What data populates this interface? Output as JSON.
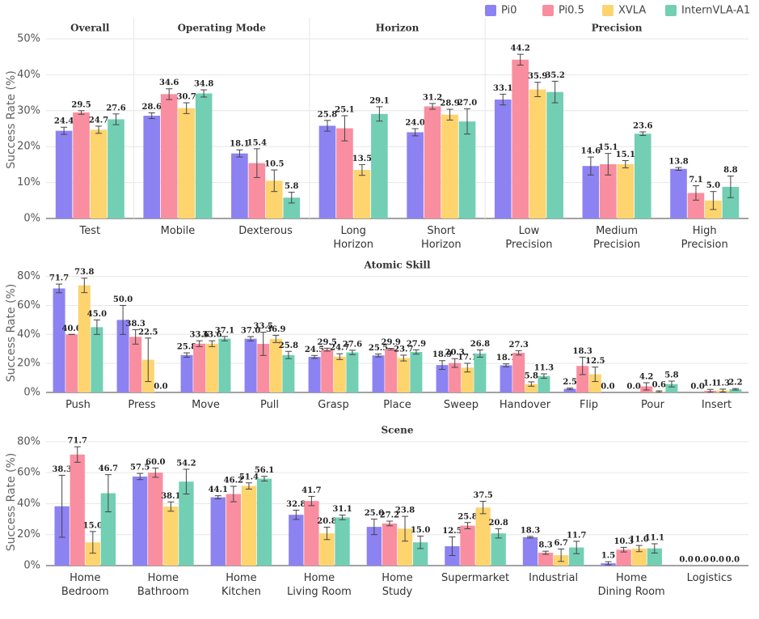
{
  "chart_data": [
    {
      "type": "bar",
      "ylabel": "Success Rate (%)",
      "legend": "top-right",
      "grid": true,
      "groups": [
        {
          "title": "Overall",
          "categories": [
            [
              "Test"
            ]
          ]
        },
        {
          "title": "Operating Mode",
          "categories": [
            [
              "Mobile"
            ],
            [
              "Dexterous"
            ]
          ]
        },
        {
          "title": "Horizon",
          "categories": [
            [
              "Long",
              "Horizon"
            ],
            [
              "Short",
              "Horizon"
            ]
          ]
        },
        {
          "title": "Precision",
          "categories": [
            [
              "Low",
              "Precision"
            ],
            [
              "Medium",
              "Precision"
            ],
            [
              "High",
              "Precision"
            ]
          ]
        }
      ],
      "ylim": [
        0,
        50
      ],
      "yticks": [
        {
          "value": 0,
          "label": "0%"
        },
        {
          "value": 10,
          "label": "10%"
        },
        {
          "value": 20,
          "label": "20%"
        },
        {
          "value": 30,
          "label": "30%"
        },
        {
          "value": 40,
          "label": "40%"
        },
        {
          "value": 50,
          "label": "50%"
        }
      ],
      "series": [
        {
          "name": "Pi0",
          "color": "#8d82f2",
          "values": [
            24.4,
            28.6,
            18.1,
            25.8,
            24.0,
            33.1,
            14.6,
            13.8
          ],
          "value_labels": [
            "24.4",
            "28.6",
            "18.1",
            "25.8",
            "24.0",
            "33.1",
            "14.6",
            "13.8"
          ],
          "errors": [
            1,
            0.8,
            1,
            1.5,
            1,
            1.5,
            2.5,
            0.4
          ]
        },
        {
          "name": "Pi0.5",
          "color": "#f98ea0",
          "values": [
            29.5,
            34.6,
            15.4,
            25.1,
            31.2,
            44.2,
            15.1,
            7.1
          ],
          "value_labels": [
            "29.5",
            "34.6",
            "15.4",
            "25.1",
            "31.2",
            "44.2",
            "15.1",
            "7.1"
          ],
          "errors": [
            0.5,
            1.5,
            4,
            3.5,
            0.8,
            1.5,
            3,
            2
          ]
        },
        {
          "name": "XVLA",
          "color": "#fdd46e",
          "values": [
            24.7,
            30.7,
            10.5,
            13.5,
            28.9,
            35.9,
            15.1,
            5.0
          ],
          "value_labels": [
            "24.7",
            "30.7",
            "10.5",
            "13.5",
            "28.9",
            "35.9",
            "15.1",
            "5.0"
          ],
          "errors": [
            1,
            1.5,
            3,
            1.5,
            1.5,
            2,
            1,
            2.5
          ]
        },
        {
          "name": "InternVLA-A1",
          "color": "#72cfb3",
          "values": [
            27.6,
            34.8,
            5.8,
            29.1,
            27.0,
            35.2,
            23.6,
            8.8
          ],
          "value_labels": [
            "27.6",
            "34.8",
            "5.8",
            "29.1",
            "27.0",
            "35.2",
            "23.6",
            "8.8"
          ],
          "errors": [
            1.5,
            1,
            1.5,
            2,
            3.5,
            3,
            0.5,
            3
          ]
        }
      ]
    },
    {
      "type": "bar",
      "title": "Atomic Skill",
      "ylabel": "Success Rate (%)",
      "grid": true,
      "categories": [
        [
          "Push"
        ],
        [
          "Press"
        ],
        [
          "Move"
        ],
        [
          "Pull"
        ],
        [
          "Grasp"
        ],
        [
          "Place"
        ],
        [
          "Sweep"
        ],
        [
          "Handover"
        ],
        [
          "Flip"
        ],
        [
          "Pour"
        ],
        [
          "Insert"
        ]
      ],
      "ylim": [
        0,
        82
      ],
      "yticks": [
        {
          "value": 0,
          "label": "0%"
        },
        {
          "value": 20,
          "label": "20%"
        },
        {
          "value": 40,
          "label": "40%"
        },
        {
          "value": 60,
          "label": "60%"
        },
        {
          "value": 80,
          "label": "80%"
        }
      ],
      "series": [
        {
          "name": "Pi0",
          "color": "#8d82f2",
          "values": [
            71.7,
            50.0,
            25.8,
            37.0,
            24.5,
            25.5,
            18.9,
            18.7,
            2.5,
            0.0,
            0.0
          ],
          "value_labels": [
            "71.7",
            "50.0",
            "25.8",
            "37.0",
            "24.5",
            "25.5",
            "18.9",
            "18.7",
            "2.5",
            "0.0",
            "0.0"
          ],
          "errors": [
            3,
            10,
            1.5,
            1.5,
            1,
            1,
            3,
            1,
            0.5,
            0,
            0
          ]
        },
        {
          "name": "Pi0.5",
          "color": "#f98ea0",
          "values": [
            40.0,
            38.3,
            33.6,
            33.5,
            29.5,
            29.9,
            20.3,
            27.3,
            18.3,
            4.2,
            1.1
          ],
          "value_labels": [
            "40.0",
            "38.3",
            "33.6",
            "33.5",
            "29.5",
            "29.9",
            "20.3",
            "27.3",
            "18.3",
            "4.2",
            "1.1"
          ],
          "errors": [
            0,
            5,
            2,
            8,
            1,
            0.5,
            3,
            1.5,
            6,
            2.5,
            1
          ]
        },
        {
          "name": "XVLA",
          "color": "#fdd46e",
          "values": [
            73.8,
            22.5,
            33.6,
            36.9,
            24.7,
            23.7,
            17.1,
            5.8,
            12.5,
            0.6,
            1.3
          ],
          "value_labels": [
            "73.8",
            "22.5",
            "33.6",
            "36.9",
            "24.7",
            "23.7",
            "17.1",
            "5.8",
            "12.5",
            "0.6",
            "1.3"
          ],
          "errors": [
            5,
            15,
            2,
            2.5,
            2,
            2,
            3,
            1.5,
            5,
            0.5,
            1
          ]
        },
        {
          "name": "InternVLA-A1",
          "color": "#72cfb3",
          "values": [
            45.0,
            0.0,
            37.1,
            25.8,
            27.6,
            27.9,
            26.8,
            11.3,
            0.0,
            5.8,
            2.2
          ],
          "value_labels": [
            "45.0",
            "0.0",
            "37.1",
            "25.8",
            "27.6",
            "27.9",
            "26.8",
            "11.3",
            "0.0",
            "5.8",
            "2.2"
          ],
          "errors": [
            5,
            0,
            1.5,
            2.5,
            1.5,
            1.5,
            2.5,
            1.5,
            0,
            2,
            0.5
          ]
        }
      ]
    },
    {
      "type": "bar",
      "title": "Scene",
      "ylabel": "Success Rate (%)",
      "grid": true,
      "categories": [
        [
          "Home",
          "Bedroom"
        ],
        [
          "Home",
          "Bathroom"
        ],
        [
          "Home",
          "Kitchen"
        ],
        [
          "Home",
          "Living Room"
        ],
        [
          "Home",
          "Study"
        ],
        [
          "Supermarket"
        ],
        [
          "Industrial"
        ],
        [
          "Home",
          "Dining Room"
        ],
        [
          "Logistics"
        ]
      ],
      "ylim": [
        0,
        82
      ],
      "yticks": [
        {
          "value": 0,
          "label": "0%"
        },
        {
          "value": 20,
          "label": "20%"
        },
        {
          "value": 40,
          "label": "40%"
        },
        {
          "value": 60,
          "label": "60%"
        },
        {
          "value": 80,
          "label": "80%"
        }
      ],
      "series": [
        {
          "name": "Pi0",
          "color": "#8d82f2",
          "values": [
            38.3,
            57.5,
            44.1,
            32.8,
            25.0,
            12.5,
            18.3,
            1.5,
            0.0
          ],
          "value_labels": [
            "38.3",
            "57.5",
            "44.1",
            "32.8",
            "25.0",
            "12.5",
            "18.3",
            "1.5",
            "0.0"
          ],
          "errors": [
            20,
            2,
            1,
            3,
            5,
            6,
            0.5,
            1,
            0
          ]
        },
        {
          "name": "Pi0.5",
          "color": "#f98ea0",
          "values": [
            71.7,
            60.0,
            46.2,
            41.7,
            27.2,
            25.8,
            8.3,
            10.3,
            0.0
          ],
          "value_labels": [
            "71.7",
            "60.0",
            "46.2",
            "41.7",
            "27.2",
            "25.8",
            "8.3",
            "10.3",
            "0.0"
          ],
          "errors": [
            5,
            3,
            5,
            3,
            1.5,
            2,
            1,
            1.5,
            0
          ]
        },
        {
          "name": "XVLA",
          "color": "#fdd46e",
          "values": [
            15.0,
            38.1,
            51.4,
            20.8,
            23.8,
            37.5,
            6.7,
            11.0,
            0.0
          ],
          "value_labels": [
            "15.0",
            "38.1",
            "51.4",
            "20.8",
            "23.8",
            "37.5",
            "6.7",
            "11.0",
            "0.0"
          ],
          "errors": [
            7,
            3,
            2,
            4,
            8,
            4,
            4,
            2,
            0
          ]
        },
        {
          "name": "InternVLA-A1",
          "color": "#72cfb3",
          "values": [
            46.7,
            54.2,
            56.1,
            31.1,
            15.0,
            20.8,
            11.7,
            11.1,
            0.0
          ],
          "value_labels": [
            "46.7",
            "54.2",
            "56.1",
            "31.1",
            "15.0",
            "20.8",
            "11.7",
            "11.1",
            "0.0"
          ],
          "errors": [
            12,
            8,
            1.5,
            1.5,
            4,
            3,
            4,
            3,
            0
          ]
        }
      ]
    }
  ]
}
